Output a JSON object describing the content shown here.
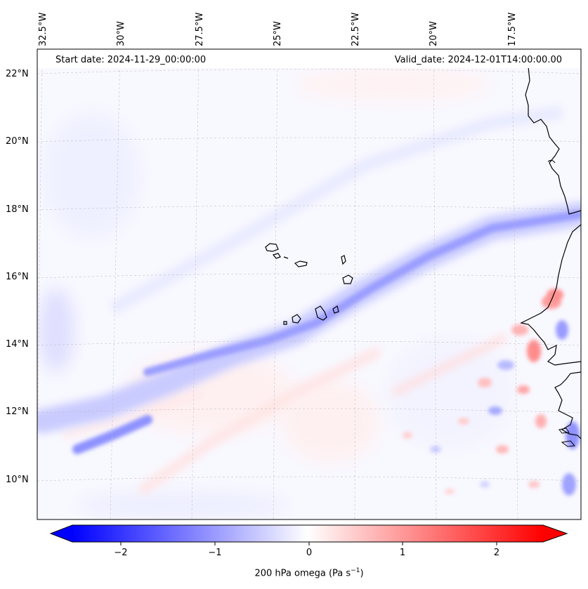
{
  "map": {
    "start_date_label": "Start date: 2024-11-29_00:00:00",
    "valid_date_label": "Valid_date: 2024-12-01T14:00:00.00",
    "longitude_labels": [
      "32.5°W",
      "30°W",
      "27.5°W",
      "25°W",
      "22.5°W",
      "20°W",
      "17.5°W"
    ],
    "latitude_labels": [
      "22°N",
      "20°N",
      "18°N",
      "16°N",
      "14°N",
      "12°N",
      "10°N"
    ]
  },
  "colorbar": {
    "label": "200 hPa omega (Pa s",
    "label_sup": "−1",
    "label_close": ")",
    "ticks": [
      "−2",
      "−1",
      "0",
      "1",
      "2"
    ],
    "min": -2.7,
    "max": 2.7,
    "negative_color": "#0000ff",
    "neutral_color": "#ffffff",
    "positive_color": "#ff0000"
  }
}
